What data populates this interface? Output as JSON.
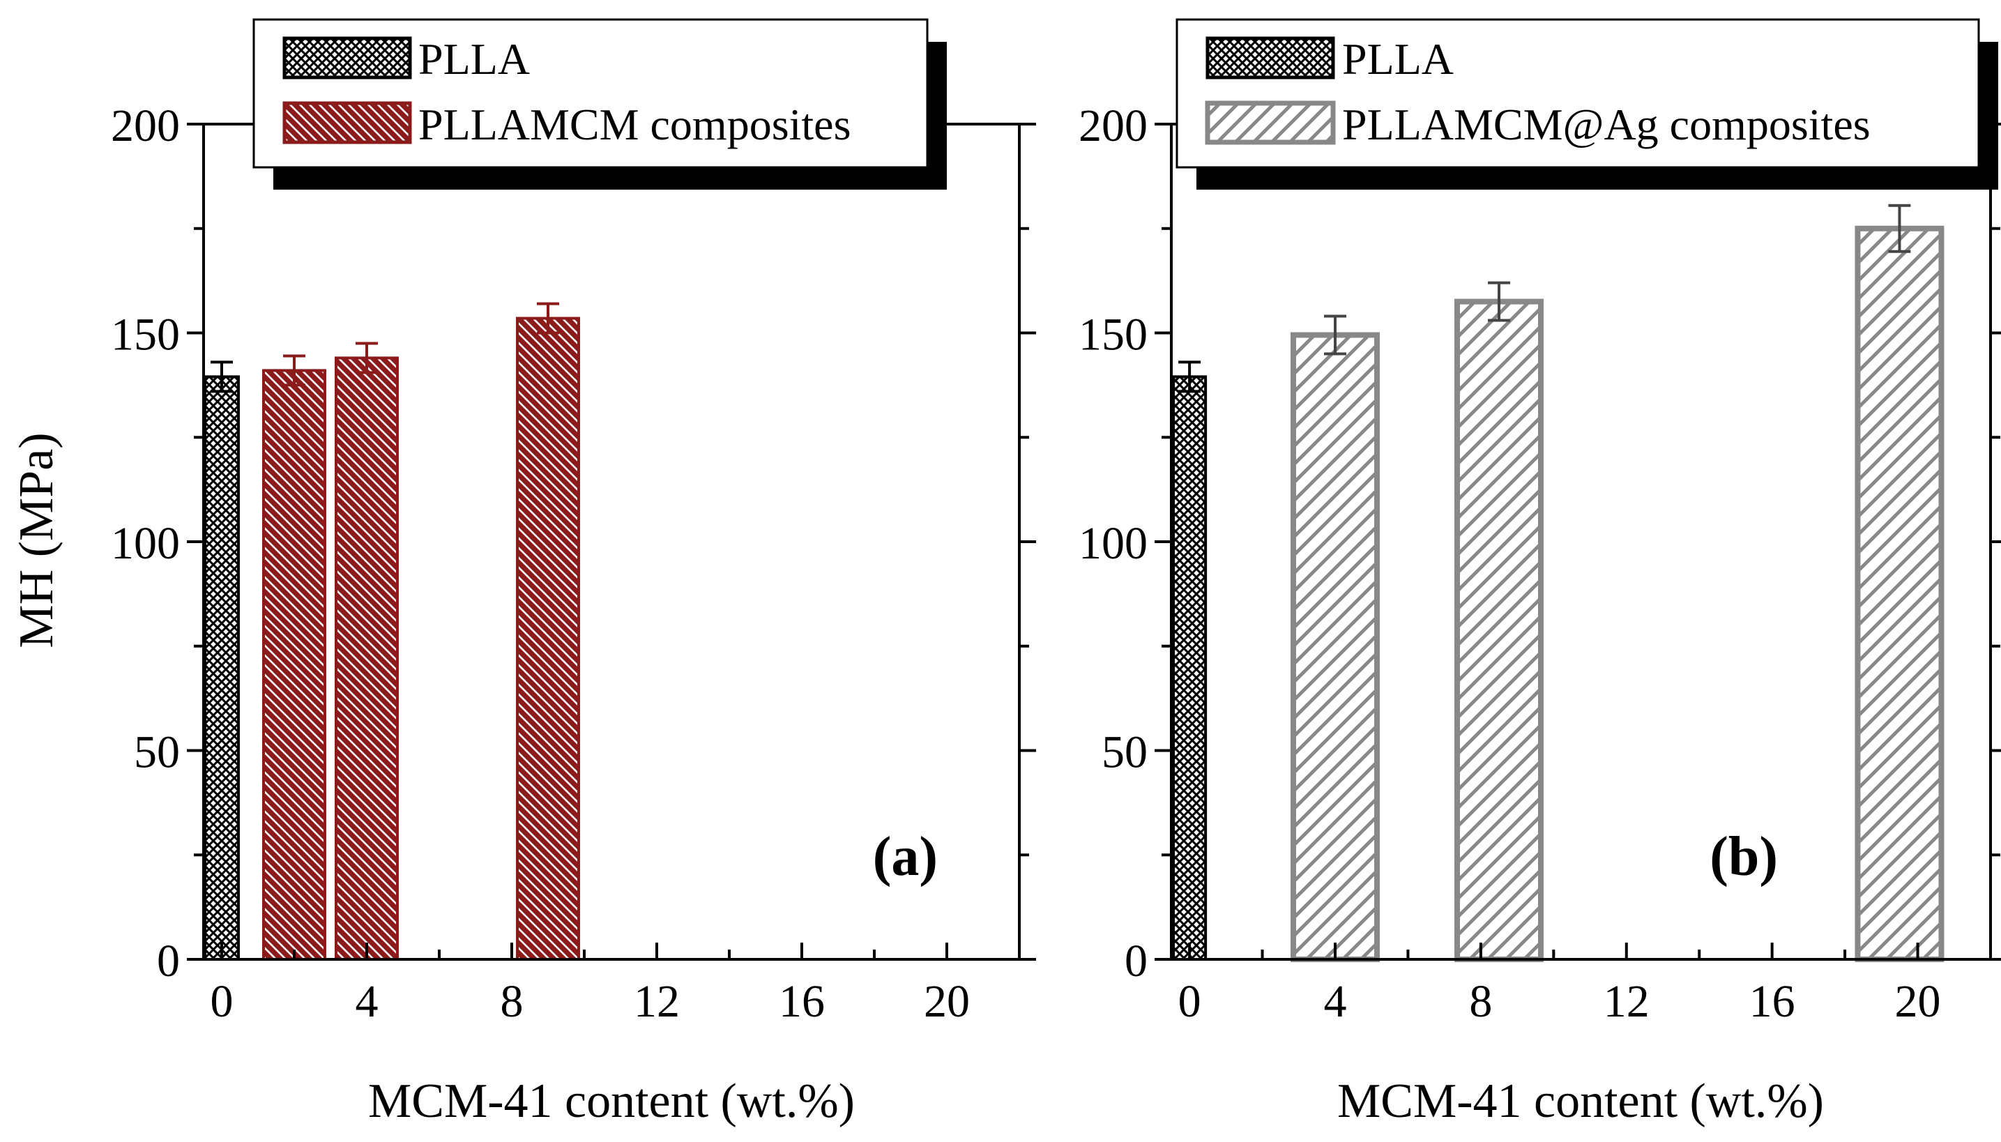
{
  "chart_data": [
    {
      "type": "bar",
      "panel_label": "(a)",
      "xlabel": "MCM-41 content (wt.%)",
      "ylabel": "MH (MPa)",
      "xlim": [
        -0.5,
        22
      ],
      "ylim": [
        0,
        200
      ],
      "xticks": [
        "0",
        "4",
        "8",
        "12",
        "16",
        "20"
      ],
      "yticks": [
        "0",
        "50",
        "100",
        "150",
        "200"
      ],
      "legend_position": "top",
      "series": [
        {
          "name": "PLLA",
          "pattern": "crosshatch",
          "color": "#000000",
          "x": [
            0
          ],
          "values": [
            139.5
          ],
          "errors": [
            3.5
          ]
        },
        {
          "name": "PLLAMCM composites",
          "pattern": "hatch-backslash",
          "color": "#8b1a1a",
          "x": [
            2,
            4,
            9
          ],
          "values": [
            141,
            144,
            153.5
          ],
          "errors": [
            3.5,
            3.5,
            3.5
          ]
        }
      ]
    },
    {
      "type": "bar",
      "panel_label": "(b)",
      "xlabel": "MCM-41 content (wt.%)",
      "ylabel": "",
      "xlim": [
        -0.5,
        22
      ],
      "ylim": [
        0,
        200
      ],
      "xticks": [
        "0",
        "4",
        "8",
        "12",
        "16",
        "20"
      ],
      "yticks": [
        "0",
        "50",
        "100",
        "150",
        "200"
      ],
      "legend_position": "top",
      "series": [
        {
          "name": "PLLA",
          "pattern": "crosshatch",
          "color": "#000000",
          "x": [
            0
          ],
          "values": [
            139.5
          ],
          "errors": [
            3.5
          ]
        },
        {
          "name": "PLLAMCM@Ag composites",
          "pattern": "hatch-slash",
          "color": "#888888",
          "x": [
            4,
            8.5,
            19.5
          ],
          "values": [
            149.5,
            157.5,
            175
          ],
          "errors": [
            4.5,
            4.5,
            5.5
          ]
        }
      ]
    }
  ]
}
